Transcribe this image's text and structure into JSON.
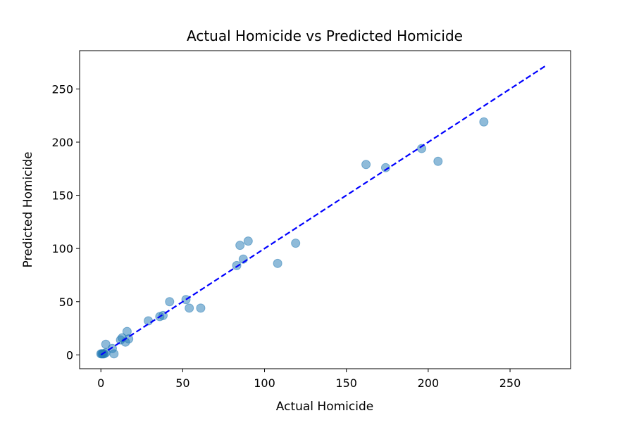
{
  "chart_data": {
    "type": "scatter",
    "title": "Actual Homicide vs Predicted Homicide",
    "xlabel": "Actual Homicide",
    "ylabel": "Predicted Homicide",
    "xlim": [
      -13,
      287
    ],
    "ylim": [
      -13,
      286
    ],
    "xticks": [
      0,
      50,
      100,
      150,
      200,
      250
    ],
    "yticks": [
      0,
      50,
      100,
      150,
      200,
      250
    ],
    "grid": false,
    "point_color": "#1f77b4",
    "point_alpha": 0.5,
    "reference_line": {
      "style": "dashed",
      "color": "#0000ff",
      "x": [
        0,
        272
      ],
      "y": [
        0,
        272
      ]
    },
    "points": [
      {
        "x": 0,
        "y": 1
      },
      {
        "x": 0.5,
        "y": 1
      },
      {
        "x": 1,
        "y": 1
      },
      {
        "x": 1.5,
        "y": 1
      },
      {
        "x": 2,
        "y": 1
      },
      {
        "x": 3,
        "y": 2
      },
      {
        "x": 3,
        "y": 10
      },
      {
        "x": 7,
        "y": 6
      },
      {
        "x": 8,
        "y": 1
      },
      {
        "x": 12,
        "y": 14
      },
      {
        "x": 13,
        "y": 16
      },
      {
        "x": 15,
        "y": 12
      },
      {
        "x": 16,
        "y": 22
      },
      {
        "x": 17,
        "y": 15
      },
      {
        "x": 29,
        "y": 32
      },
      {
        "x": 36,
        "y": 36
      },
      {
        "x": 38,
        "y": 37
      },
      {
        "x": 42,
        "y": 50
      },
      {
        "x": 52,
        "y": 52
      },
      {
        "x": 54,
        "y": 44
      },
      {
        "x": 61,
        "y": 44
      },
      {
        "x": 83,
        "y": 84
      },
      {
        "x": 85,
        "y": 103
      },
      {
        "x": 87,
        "y": 90
      },
      {
        "x": 90,
        "y": 107
      },
      {
        "x": 108,
        "y": 86
      },
      {
        "x": 119,
        "y": 105
      },
      {
        "x": 162,
        "y": 179
      },
      {
        "x": 174,
        "y": 176
      },
      {
        "x": 196,
        "y": 194
      },
      {
        "x": 206,
        "y": 182
      },
      {
        "x": 234,
        "y": 219
      }
    ]
  }
}
